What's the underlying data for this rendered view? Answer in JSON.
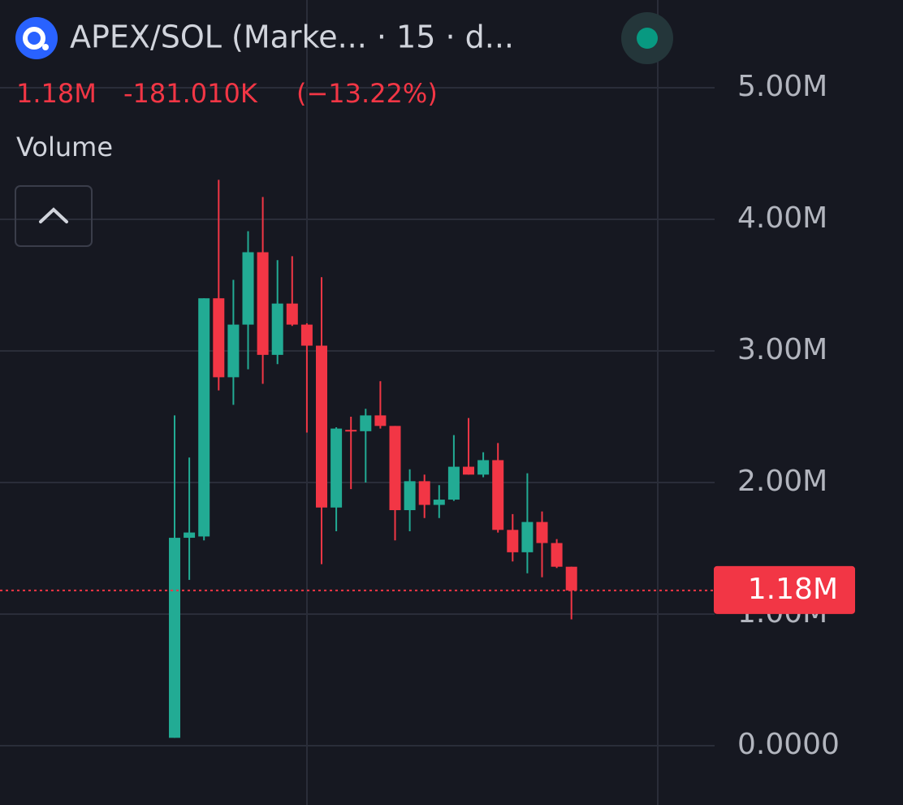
{
  "chart_data": {
    "type": "candlestick",
    "title": "APEX/SOL (Marke... · 15 · d...",
    "last_label": "1.18M",
    "change_label": "-181.010K",
    "change_pct_label": "(−13.22%)",
    "indicator": "Volume",
    "up_color": "#22ab94",
    "down_color": "#f23645",
    "open": [
      60000,
      1580000,
      1590000,
      3400000,
      2800000,
      3200000,
      3750000,
      2970000,
      3360000,
      3200000,
      3040000,
      1810000,
      2400000,
      2390000,
      2510000,
      2430000,
      1790000,
      2010000,
      1830000,
      1870000,
      2120000,
      2060000,
      2170000,
      1640000,
      1470000,
      1700000,
      1540000,
      1360000
    ],
    "high": [
      2510000,
      2190000,
      3400000,
      4300000,
      3540000,
      3910000,
      4170000,
      3690000,
      3720000,
      3210000,
      3560000,
      2420000,
      2500000,
      2560000,
      2770000,
      2430000,
      2100000,
      2060000,
      1980000,
      2360000,
      2490000,
      2230000,
      2300000,
      1760000,
      2070000,
      1780000,
      1570000,
      1360000
    ],
    "low": [
      60000,
      1260000,
      1560000,
      2700000,
      2590000,
      2860000,
      2750000,
      2900000,
      3190000,
      2380000,
      1380000,
      1630000,
      1950000,
      2000000,
      2410000,
      1560000,
      1630000,
      1730000,
      1730000,
      1860000,
      2060000,
      2040000,
      1620000,
      1400000,
      1310000,
      1280000,
      1350000,
      960000
    ],
    "close": [
      1580000,
      1620000,
      3400000,
      2800000,
      3200000,
      3750000,
      2970000,
      3360000,
      3200000,
      3040000,
      1810000,
      2410000,
      2390000,
      2510000,
      2430000,
      1790000,
      2010000,
      1830000,
      1870000,
      2120000,
      2060000,
      2170000,
      1640000,
      1470000,
      1700000,
      1540000,
      1360000,
      1180000
    ],
    "last_price": {
      "value": 1180000,
      "label": "1.18M"
    },
    "ylim": [
      -450600,
      5666700
    ],
    "yticks": [
      {
        "value": 0,
        "label": "0.0000"
      },
      {
        "value": 1000000,
        "label": "1.00M"
      },
      {
        "value": 2000000,
        "label": "2.00M"
      },
      {
        "value": 3000000,
        "label": "3.00M"
      },
      {
        "value": 4000000,
        "label": "4.00M"
      },
      {
        "value": 5000000,
        "label": "5.00M"
      }
    ],
    "grid": true
  }
}
